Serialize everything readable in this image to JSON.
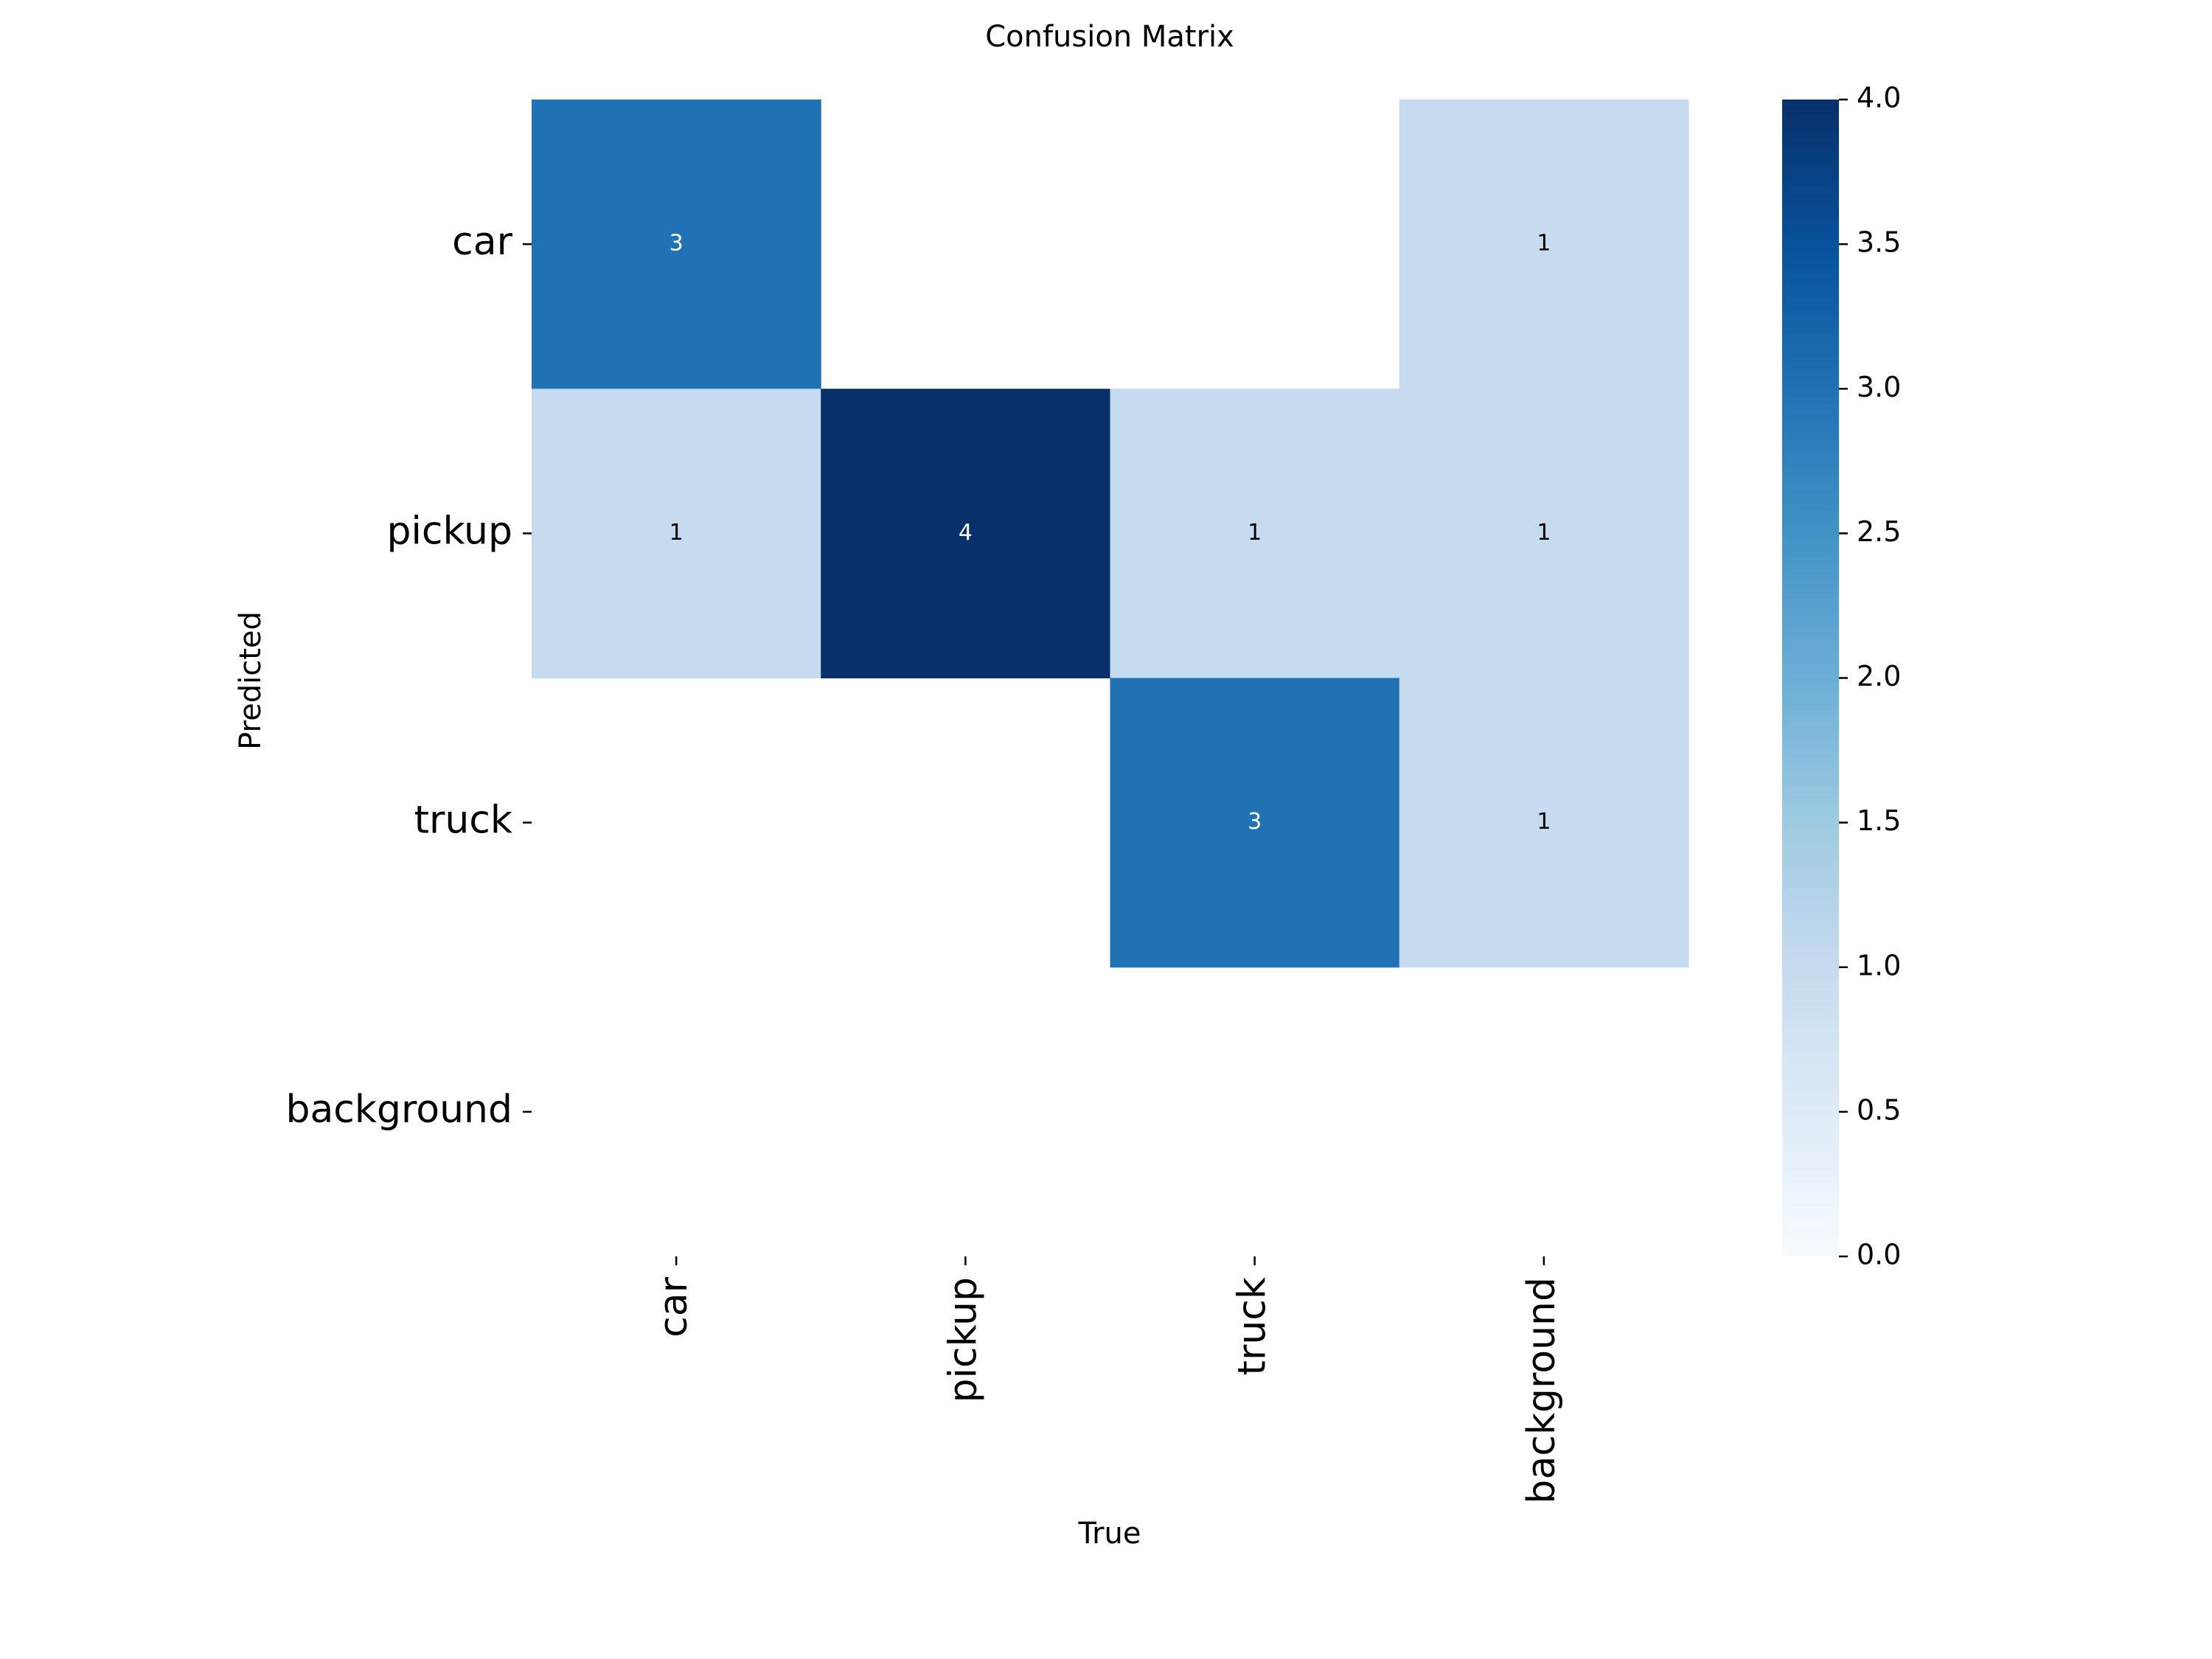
{
  "chart_data": {
    "type": "heatmap",
    "title": "Confusion Matrix",
    "x_label": "True",
    "y_label": "Predicted",
    "x_categories": [
      "car",
      "pickup",
      "truck",
      "background"
    ],
    "y_categories": [
      "car",
      "pickup",
      "truck",
      "background"
    ],
    "values": [
      [
        3,
        null,
        null,
        1
      ],
      [
        1,
        4,
        1,
        1
      ],
      [
        null,
        null,
        3,
        1
      ],
      [
        null,
        null,
        null,
        null
      ]
    ],
    "colormap": "Blues",
    "clim": [
      0,
      4
    ],
    "cticks": [
      {
        "value": 0,
        "label": "0.0"
      },
      {
        "value": 0.5,
        "label": "0.5"
      },
      {
        "value": 1,
        "label": "1.0"
      },
      {
        "value": 1.5,
        "label": "1.5"
      },
      {
        "value": 2,
        "label": "2.0"
      },
      {
        "value": 2.5,
        "label": "2.5"
      },
      {
        "value": 3,
        "label": "3.0"
      },
      {
        "value": 3.5,
        "label": "3.5"
      },
      {
        "value": 4,
        "label": "4.0"
      }
    ]
  }
}
